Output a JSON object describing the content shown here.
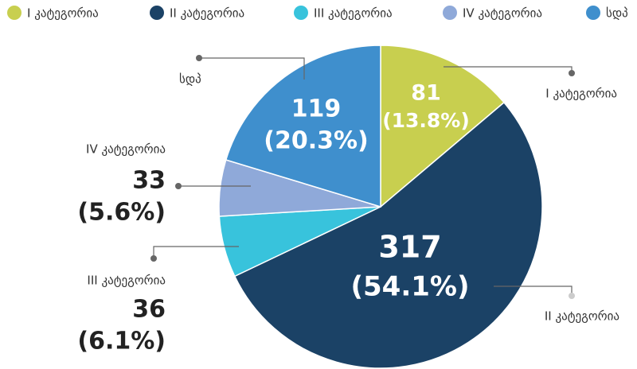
{
  "chart_data": {
    "type": "pie",
    "categories": [
      "I კატეგორია",
      "II კატეგორია",
      "III კატეგორია",
      "IV კატეგორია",
      "სდპ"
    ],
    "values": [
      81,
      317,
      36,
      33,
      119
    ],
    "percentages": [
      13.8,
      54.1,
      6.1,
      5.6,
      20.3
    ],
    "percentage_labels": [
      "(13.8%)",
      "(54.1%)",
      "(6.1%)",
      "(5.6%)",
      "(20.3%)"
    ],
    "colors": [
      "#c8cf4f",
      "#1b4266",
      "#38c3dc",
      "#8fa9d9",
      "#3f8fcd"
    ],
    "legend": "top"
  }
}
